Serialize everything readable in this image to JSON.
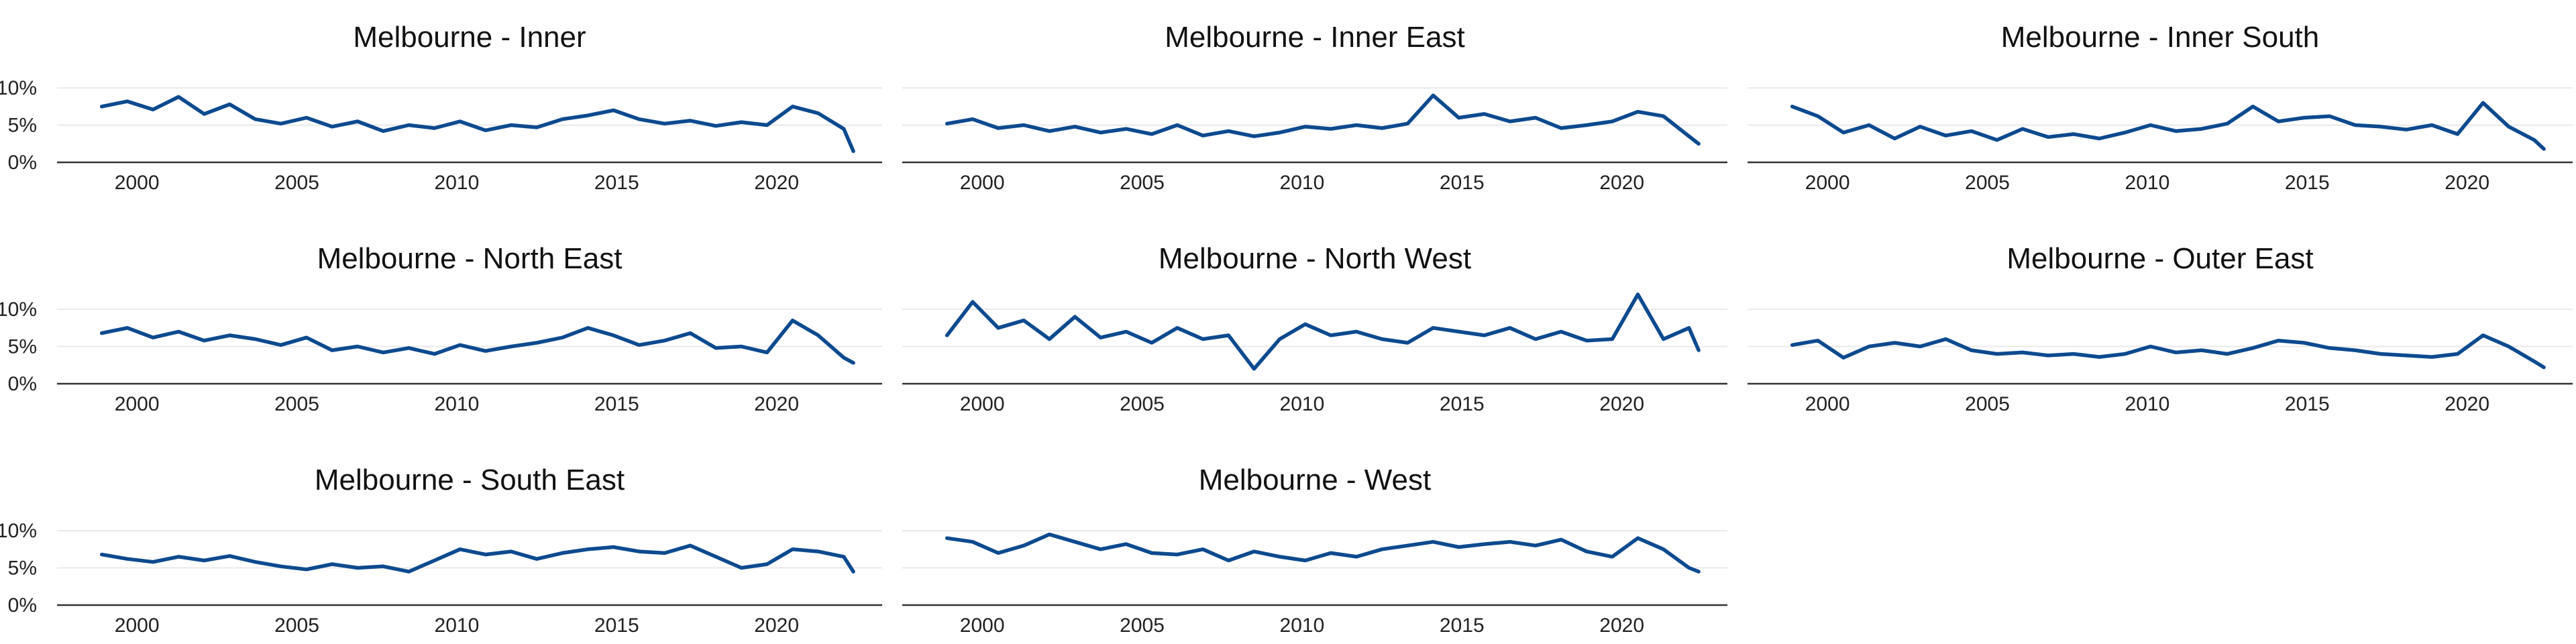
{
  "chart_data": [
    {
      "type": "line",
      "title": "Melbourne - Inner",
      "xlim": [
        1997.5,
        2023.3
      ],
      "ylim": [
        0,
        0.11
      ],
      "x_ticks": [
        {
          "value": 2000,
          "label": "2000"
        },
        {
          "value": 2005,
          "label": "2005"
        },
        {
          "value": 2010,
          "label": "2010"
        },
        {
          "value": 2015,
          "label": "2015"
        },
        {
          "value": 2020,
          "label": "2020"
        }
      ],
      "y_ticks": [
        {
          "value": 0,
          "label": "0%"
        },
        {
          "value": 0.05,
          "label": "5%"
        },
        {
          "value": 0.1,
          "label": "10%"
        }
      ],
      "grid": true,
      "color": "#0d4a8f",
      "x": [
        1998.9,
        1999.7,
        2000.5,
        2001.3,
        2002.1,
        2002.9,
        2003.7,
        2004.5,
        2005.3,
        2006.1,
        2006.9,
        2007.7,
        2008.5,
        2009.3,
        2010.1,
        2010.9,
        2011.7,
        2012.5,
        2013.3,
        2014.1,
        2014.9,
        2015.7,
        2016.5,
        2017.3,
        2018.1,
        2018.9,
        2019.7,
        2020.5,
        2021.3,
        2022.1,
        2022.4
      ],
      "y": [
        0.075,
        0.082,
        0.071,
        0.088,
        0.065,
        0.078,
        0.058,
        0.052,
        0.06,
        0.048,
        0.055,
        0.042,
        0.05,
        0.046,
        0.055,
        0.043,
        0.05,
        0.047,
        0.058,
        0.063,
        0.07,
        0.058,
        0.052,
        0.056,
        0.049,
        0.054,
        0.05,
        0.075,
        0.066,
        0.045,
        0.015
      ]
    },
    {
      "type": "line",
      "title": "Melbourne - Inner East",
      "xlim": [
        1997.5,
        2023.3
      ],
      "ylim": [
        0,
        0.11
      ],
      "x_ticks": [
        {
          "value": 2000,
          "label": "2000"
        },
        {
          "value": 2005,
          "label": "2005"
        },
        {
          "value": 2010,
          "label": "2010"
        },
        {
          "value": 2015,
          "label": "2015"
        },
        {
          "value": 2020,
          "label": "2020"
        }
      ],
      "y_ticks": [
        {
          "value": 0,
          "label": ""
        },
        {
          "value": 0.05,
          "label": ""
        },
        {
          "value": 0.1,
          "label": ""
        }
      ],
      "grid": true,
      "color": "#0d4a8f",
      "x": [
        1998.9,
        1999.7,
        2000.5,
        2001.3,
        2002.1,
        2002.9,
        2003.7,
        2004.5,
        2005.3,
        2006.1,
        2006.9,
        2007.7,
        2008.5,
        2009.3,
        2010.1,
        2010.9,
        2011.7,
        2012.5,
        2013.3,
        2014.1,
        2014.9,
        2015.7,
        2016.5,
        2017.3,
        2018.1,
        2018.9,
        2019.7,
        2020.5,
        2021.3,
        2022.1,
        2022.4
      ],
      "y": [
        0.052,
        0.058,
        0.046,
        0.05,
        0.042,
        0.048,
        0.04,
        0.045,
        0.038,
        0.05,
        0.036,
        0.042,
        0.035,
        0.04,
        0.048,
        0.045,
        0.05,
        0.046,
        0.052,
        0.09,
        0.06,
        0.065,
        0.055,
        0.06,
        0.046,
        0.05,
        0.055,
        0.068,
        0.062,
        0.035,
        0.025
      ]
    },
    {
      "type": "line",
      "title": "Melbourne - Inner South",
      "xlim": [
        1997.5,
        2023.3
      ],
      "ylim": [
        0,
        0.11
      ],
      "x_ticks": [
        {
          "value": 2000,
          "label": "2000"
        },
        {
          "value": 2005,
          "label": "2005"
        },
        {
          "value": 2010,
          "label": "2010"
        },
        {
          "value": 2015,
          "label": "2015"
        },
        {
          "value": 2020,
          "label": "2020"
        }
      ],
      "y_ticks": [
        {
          "value": 0,
          "label": ""
        },
        {
          "value": 0.05,
          "label": ""
        },
        {
          "value": 0.1,
          "label": ""
        }
      ],
      "grid": true,
      "color": "#0d4a8f",
      "x": [
        1998.9,
        1999.7,
        2000.5,
        2001.3,
        2002.1,
        2002.9,
        2003.7,
        2004.5,
        2005.3,
        2006.1,
        2006.9,
        2007.7,
        2008.5,
        2009.3,
        2010.1,
        2010.9,
        2011.7,
        2012.5,
        2013.3,
        2014.1,
        2014.9,
        2015.7,
        2016.5,
        2017.3,
        2018.1,
        2018.9,
        2019.7,
        2020.5,
        2021.3,
        2022.1,
        2022.4
      ],
      "y": [
        0.075,
        0.062,
        0.04,
        0.05,
        0.032,
        0.048,
        0.036,
        0.042,
        0.03,
        0.045,
        0.034,
        0.038,
        0.032,
        0.04,
        0.05,
        0.042,
        0.045,
        0.052,
        0.075,
        0.055,
        0.06,
        0.062,
        0.05,
        0.048,
        0.044,
        0.05,
        0.038,
        0.08,
        0.048,
        0.03,
        0.018
      ]
    },
    {
      "type": "line",
      "title": "Melbourne - North East",
      "xlim": [
        1997.5,
        2023.3
      ],
      "ylim": [
        0,
        0.11
      ],
      "x_ticks": [
        {
          "value": 2000,
          "label": "2000"
        },
        {
          "value": 2005,
          "label": "2005"
        },
        {
          "value": 2010,
          "label": "2010"
        },
        {
          "value": 2015,
          "label": "2015"
        },
        {
          "value": 2020,
          "label": "2020"
        }
      ],
      "y_ticks": [
        {
          "value": 0,
          "label": "0%"
        },
        {
          "value": 0.05,
          "label": "5%"
        },
        {
          "value": 0.1,
          "label": "10%"
        }
      ],
      "grid": true,
      "color": "#0d4a8f",
      "x": [
        1998.9,
        1999.7,
        2000.5,
        2001.3,
        2002.1,
        2002.9,
        2003.7,
        2004.5,
        2005.3,
        2006.1,
        2006.9,
        2007.7,
        2008.5,
        2009.3,
        2010.1,
        2010.9,
        2011.7,
        2012.5,
        2013.3,
        2014.1,
        2014.9,
        2015.7,
        2016.5,
        2017.3,
        2018.1,
        2018.9,
        2019.7,
        2020.5,
        2021.3,
        2022.1,
        2022.4
      ],
      "y": [
        0.068,
        0.075,
        0.062,
        0.07,
        0.058,
        0.065,
        0.06,
        0.052,
        0.062,
        0.045,
        0.05,
        0.042,
        0.048,
        0.04,
        0.052,
        0.044,
        0.05,
        0.055,
        0.062,
        0.075,
        0.065,
        0.052,
        0.058,
        0.068,
        0.048,
        0.05,
        0.042,
        0.085,
        0.065,
        0.035,
        0.028
      ]
    },
    {
      "type": "line",
      "title": "Melbourne - North West",
      "xlim": [
        1997.5,
        2023.3
      ],
      "ylim": [
        0,
        0.11
      ],
      "x_ticks": [
        {
          "value": 2000,
          "label": "2000"
        },
        {
          "value": 2005,
          "label": "2005"
        },
        {
          "value": 2010,
          "label": "2010"
        },
        {
          "value": 2015,
          "label": "2015"
        },
        {
          "value": 2020,
          "label": "2020"
        }
      ],
      "y_ticks": [
        {
          "value": 0,
          "label": ""
        },
        {
          "value": 0.05,
          "label": ""
        },
        {
          "value": 0.1,
          "label": ""
        }
      ],
      "grid": true,
      "color": "#0d4a8f",
      "x": [
        1998.9,
        1999.7,
        2000.5,
        2001.3,
        2002.1,
        2002.9,
        2003.7,
        2004.5,
        2005.3,
        2006.1,
        2006.9,
        2007.7,
        2008.5,
        2009.3,
        2010.1,
        2010.9,
        2011.7,
        2012.5,
        2013.3,
        2014.1,
        2014.9,
        2015.7,
        2016.5,
        2017.3,
        2018.1,
        2018.9,
        2019.7,
        2020.5,
        2021.3,
        2022.1,
        2022.4
      ],
      "y": [
        0.065,
        0.11,
        0.075,
        0.085,
        0.06,
        0.09,
        0.062,
        0.07,
        0.055,
        0.075,
        0.06,
        0.065,
        0.02,
        0.06,
        0.08,
        0.065,
        0.07,
        0.06,
        0.055,
        0.075,
        0.07,
        0.065,
        0.075,
        0.06,
        0.07,
        0.058,
        0.06,
        0.12,
        0.06,
        0.075,
        0.045
      ]
    },
    {
      "type": "line",
      "title": "Melbourne - Outer East",
      "xlim": [
        1997.5,
        2023.3
      ],
      "ylim": [
        0,
        0.11
      ],
      "x_ticks": [
        {
          "value": 2000,
          "label": "2000"
        },
        {
          "value": 2005,
          "label": "2005"
        },
        {
          "value": 2010,
          "label": "2010"
        },
        {
          "value": 2015,
          "label": "2015"
        },
        {
          "value": 2020,
          "label": "2020"
        }
      ],
      "y_ticks": [
        {
          "value": 0,
          "label": ""
        },
        {
          "value": 0.05,
          "label": ""
        },
        {
          "value": 0.1,
          "label": ""
        }
      ],
      "grid": true,
      "color": "#0d4a8f",
      "x": [
        1998.9,
        1999.7,
        2000.5,
        2001.3,
        2002.1,
        2002.9,
        2003.7,
        2004.5,
        2005.3,
        2006.1,
        2006.9,
        2007.7,
        2008.5,
        2009.3,
        2010.1,
        2010.9,
        2011.7,
        2012.5,
        2013.3,
        2014.1,
        2014.9,
        2015.7,
        2016.5,
        2017.3,
        2018.1,
        2018.9,
        2019.7,
        2020.5,
        2021.3,
        2022.1,
        2022.4
      ],
      "y": [
        0.052,
        0.058,
        0.035,
        0.05,
        0.055,
        0.05,
        0.06,
        0.045,
        0.04,
        0.042,
        0.038,
        0.04,
        0.036,
        0.04,
        0.05,
        0.042,
        0.045,
        0.04,
        0.048,
        0.058,
        0.055,
        0.048,
        0.045,
        0.04,
        0.038,
        0.036,
        0.04,
        0.065,
        0.05,
        0.03,
        0.022
      ]
    },
    {
      "type": "line",
      "title": "Melbourne - South East",
      "xlim": [
        1997.5,
        2023.3
      ],
      "ylim": [
        0,
        0.11
      ],
      "x_ticks": [
        {
          "value": 2000,
          "label": "2000"
        },
        {
          "value": 2005,
          "label": "2005"
        },
        {
          "value": 2010,
          "label": "2010"
        },
        {
          "value": 2015,
          "label": "2015"
        },
        {
          "value": 2020,
          "label": "2020"
        }
      ],
      "y_ticks": [
        {
          "value": 0,
          "label": "0%"
        },
        {
          "value": 0.05,
          "label": "5%"
        },
        {
          "value": 0.1,
          "label": "10%"
        }
      ],
      "grid": true,
      "color": "#0d4a8f",
      "x": [
        1998.9,
        1999.7,
        2000.5,
        2001.3,
        2002.1,
        2002.9,
        2003.7,
        2004.5,
        2005.3,
        2006.1,
        2006.9,
        2007.7,
        2008.5,
        2009.3,
        2010.1,
        2010.9,
        2011.7,
        2012.5,
        2013.3,
        2014.1,
        2014.9,
        2015.7,
        2016.5,
        2017.3,
        2018.1,
        2018.9,
        2019.7,
        2020.5,
        2021.3,
        2022.1,
        2022.4
      ],
      "y": [
        0.068,
        0.062,
        0.058,
        0.065,
        0.06,
        0.066,
        0.058,
        0.052,
        0.048,
        0.055,
        0.05,
        0.052,
        0.045,
        0.06,
        0.075,
        0.068,
        0.072,
        0.062,
        0.07,
        0.075,
        0.078,
        0.072,
        0.07,
        0.08,
        0.065,
        0.05,
        0.055,
        0.075,
        0.072,
        0.065,
        0.045
      ]
    },
    {
      "type": "line",
      "title": "Melbourne - West",
      "xlim": [
        1997.5,
        2023.3
      ],
      "ylim": [
        0,
        0.11
      ],
      "x_ticks": [
        {
          "value": 2000,
          "label": "2000"
        },
        {
          "value": 2005,
          "label": "2005"
        },
        {
          "value": 2010,
          "label": "2010"
        },
        {
          "value": 2015,
          "label": "2015"
        },
        {
          "value": 2020,
          "label": "2020"
        }
      ],
      "y_ticks": [
        {
          "value": 0,
          "label": ""
        },
        {
          "value": 0.05,
          "label": ""
        },
        {
          "value": 0.1,
          "label": ""
        }
      ],
      "grid": true,
      "color": "#0d4a8f",
      "x": [
        1998.9,
        1999.7,
        2000.5,
        2001.3,
        2002.1,
        2002.9,
        2003.7,
        2004.5,
        2005.3,
        2006.1,
        2006.9,
        2007.7,
        2008.5,
        2009.3,
        2010.1,
        2010.9,
        2011.7,
        2012.5,
        2013.3,
        2014.1,
        2014.9,
        2015.7,
        2016.5,
        2017.3,
        2018.1,
        2018.9,
        2019.7,
        2020.5,
        2021.3,
        2022.1,
        2022.4
      ],
      "y": [
        0.09,
        0.085,
        0.07,
        0.08,
        0.095,
        0.085,
        0.075,
        0.082,
        0.07,
        0.068,
        0.075,
        0.06,
        0.072,
        0.065,
        0.06,
        0.07,
        0.065,
        0.075,
        0.08,
        0.085,
        0.078,
        0.082,
        0.085,
        0.08,
        0.088,
        0.072,
        0.065,
        0.09,
        0.075,
        0.05,
        0.045
      ]
    }
  ]
}
